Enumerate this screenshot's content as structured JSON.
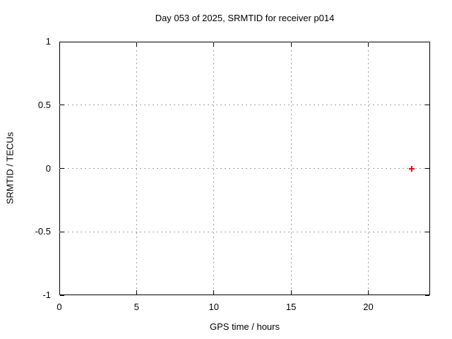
{
  "chart_data": {
    "type": "scatter",
    "title": "Day 053 of 2025, SRMTID for receiver p014",
    "xlabel": "GPS time / hours",
    "ylabel": "SRMTID / TECUs",
    "xlim": [
      0,
      24
    ],
    "ylim": [
      -1,
      1
    ],
    "x_ticks": [
      0,
      5,
      10,
      15,
      20
    ],
    "x_tick_labels": [
      "0",
      "5",
      "10",
      "15",
      "20"
    ],
    "y_ticks": [
      -1,
      -0.5,
      0,
      0.5,
      1
    ],
    "y_tick_labels": [
      "-1",
      "-0.5",
      "0",
      "0.5",
      "1"
    ],
    "grid": true,
    "legend_position": "none",
    "series": [
      {
        "name": "SRMTID",
        "marker": "plus",
        "color": "#ff0000",
        "points": [
          {
            "x": 22.8,
            "y": 0.0
          }
        ]
      }
    ]
  },
  "colors": {
    "background": "#ffffff",
    "axis": "#000000",
    "grid": "#a0a0a0",
    "marker": "#ff0000"
  }
}
